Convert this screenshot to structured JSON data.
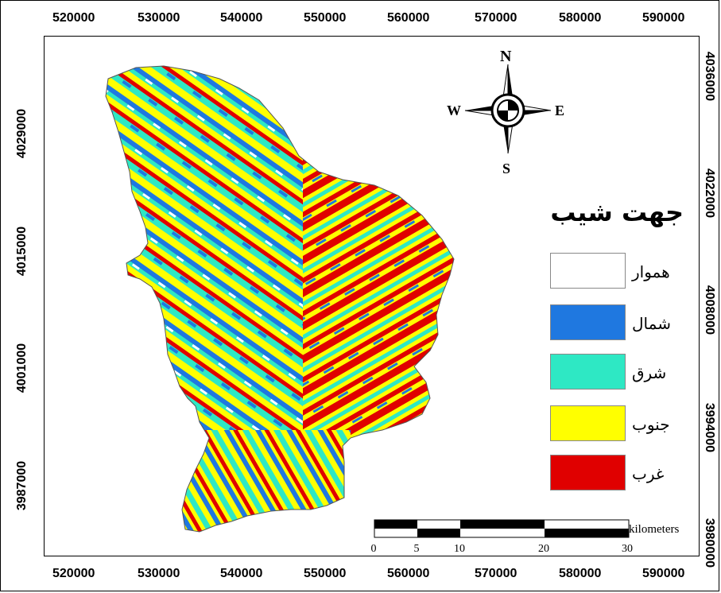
{
  "x_ticks": [
    "520000",
    "530000",
    "540000",
    "550000",
    "560000",
    "570000",
    "580000",
    "590000"
  ],
  "y_ticks_left": [
    "4029000",
    "4015000",
    "4001000",
    "3987000"
  ],
  "y_ticks_right": [
    "4036000",
    "4022000",
    "4008000",
    "3994000",
    "3980000"
  ],
  "legend": {
    "title": "جهت شيب",
    "items": [
      {
        "label": "هموار",
        "color": "#ffffff"
      },
      {
        "label": "شمال",
        "color": "#1f78e0"
      },
      {
        "label": "شرق",
        "color": "#2ee8c4"
      },
      {
        "label": "جنوب",
        "color": "#ffff00"
      },
      {
        "label": "غرب",
        "color": "#e00000"
      }
    ]
  },
  "compass": {
    "n": "N",
    "s": "S",
    "e": "E",
    "w": "W"
  },
  "scalebar": {
    "labels": [
      "0",
      "5",
      "10",
      "20",
      "30"
    ],
    "units": "kilometers"
  }
}
